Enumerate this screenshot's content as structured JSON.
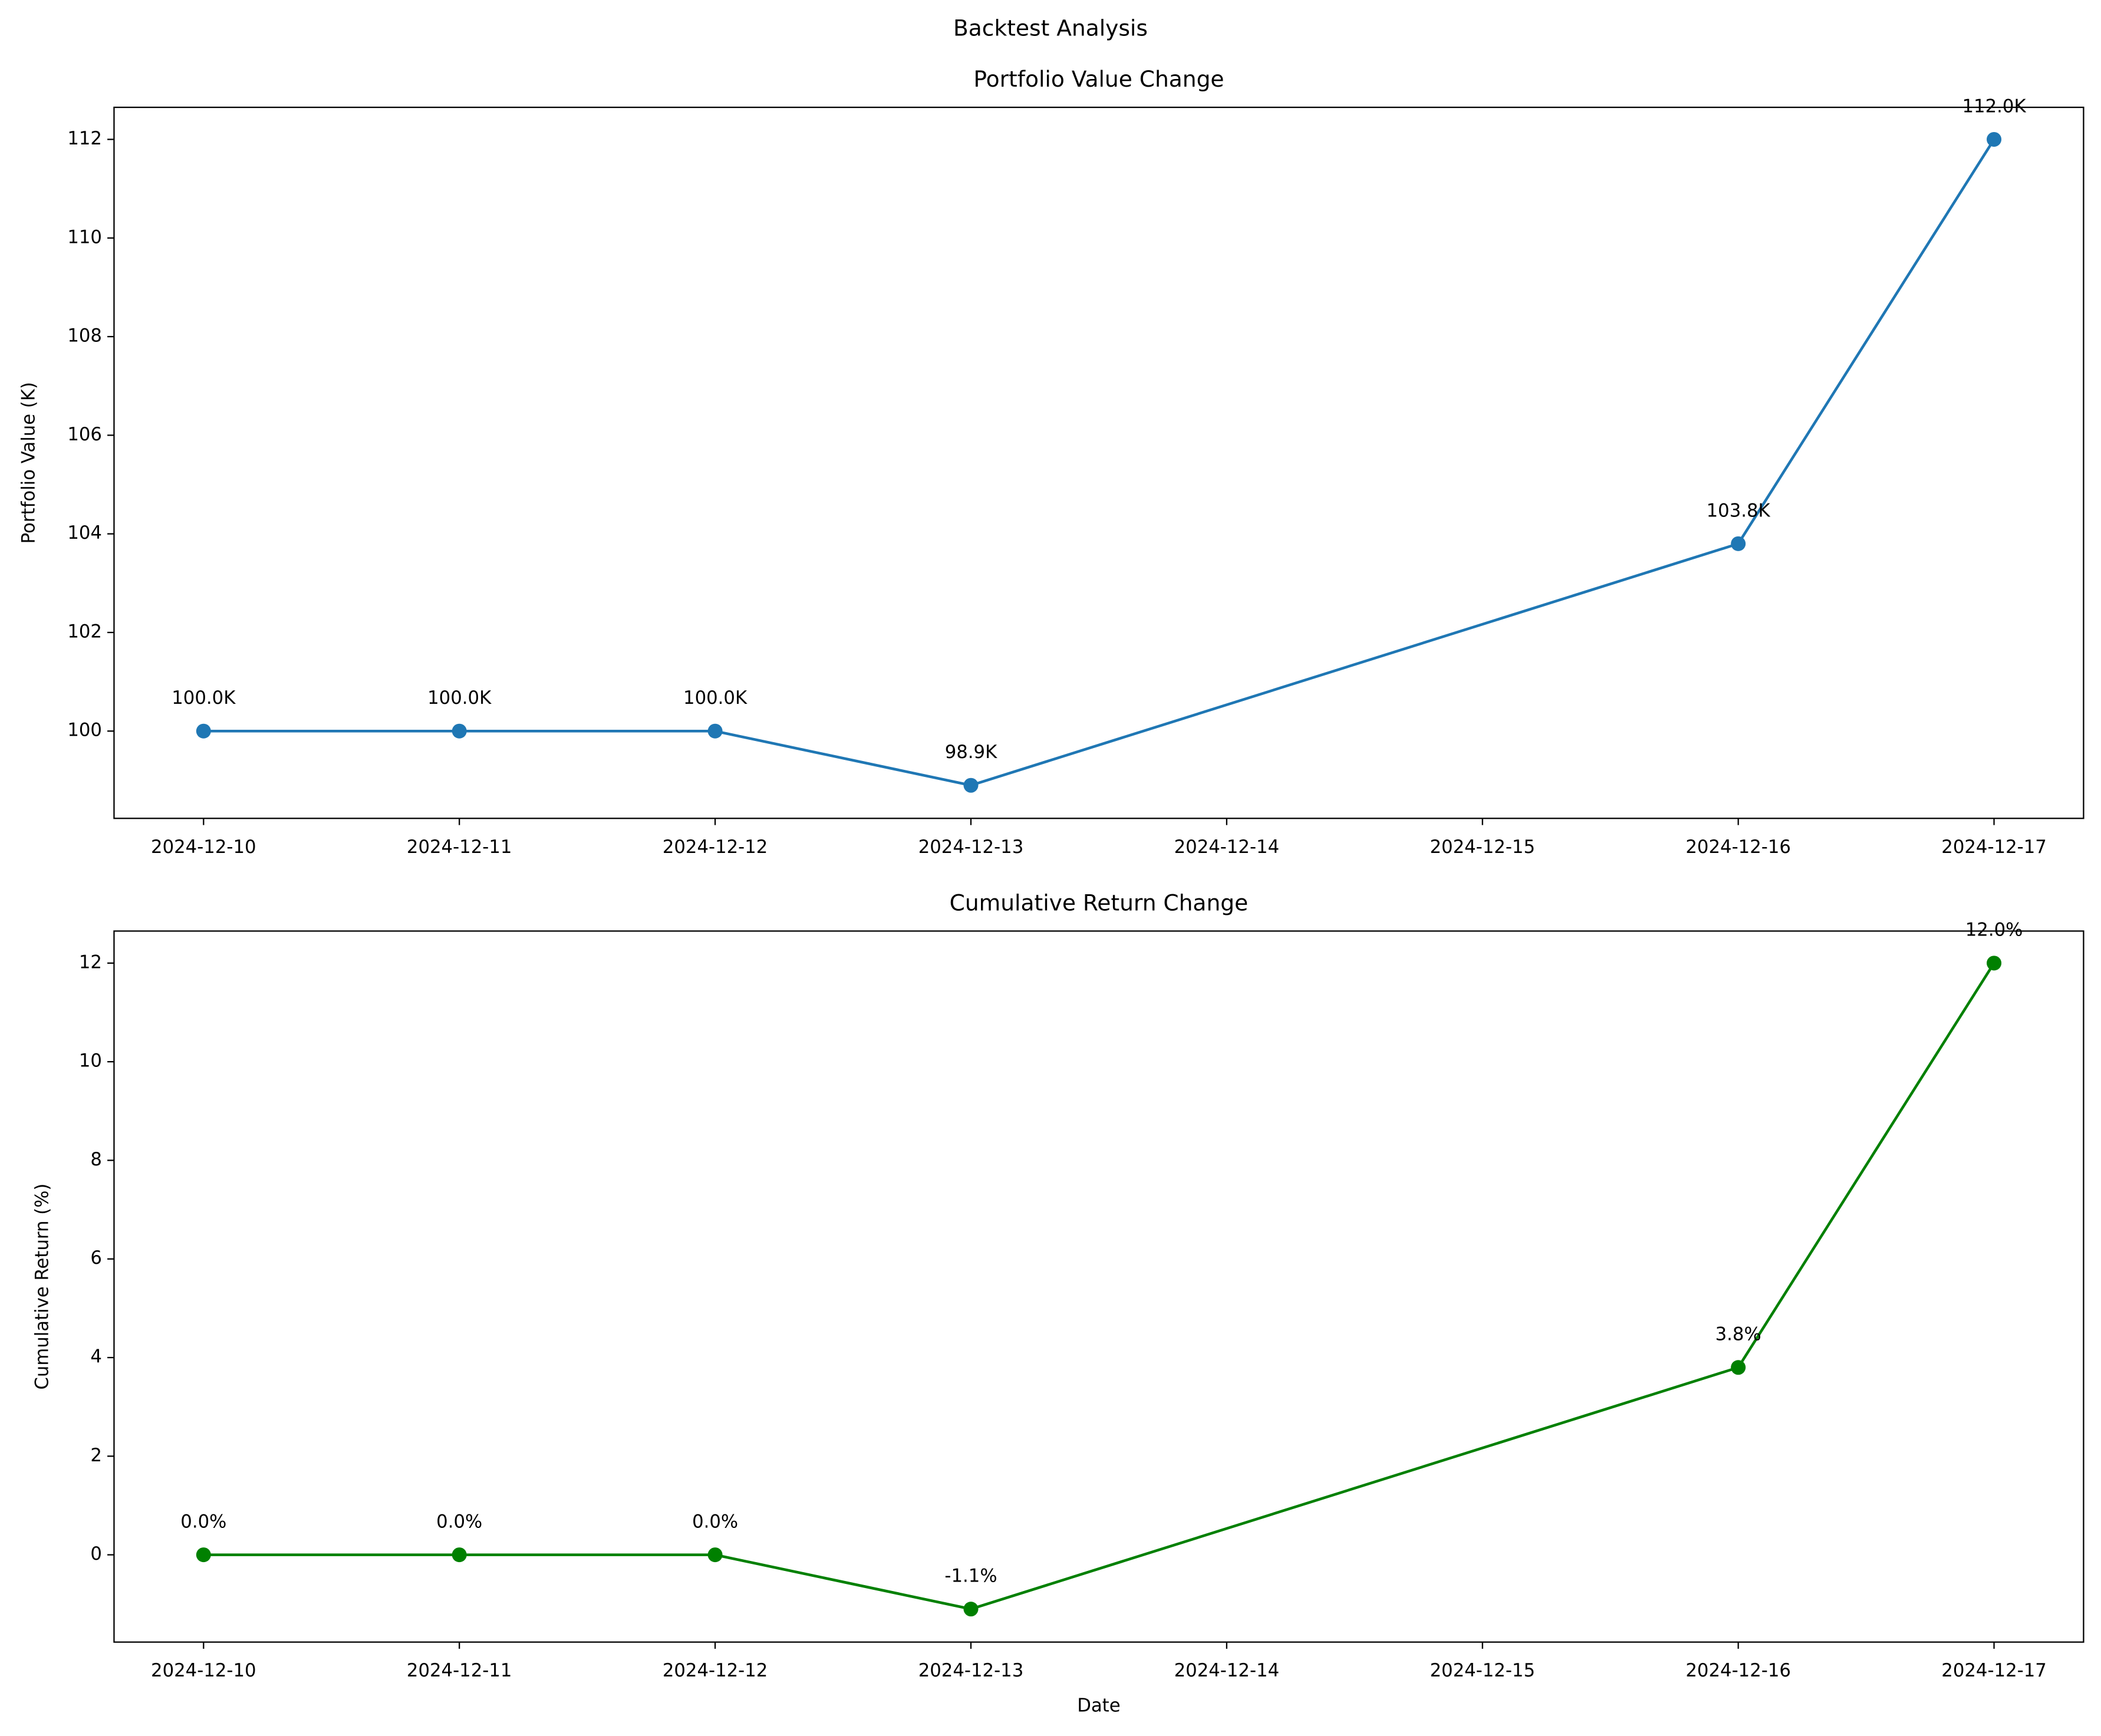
{
  "title": "Backtest Analysis",
  "chart_data": [
    {
      "type": "line",
      "title": "Portfolio Value Change",
      "ylabel": "Portfolio Value (K)",
      "x": [
        "2024-12-10",
        "2024-12-11",
        "2024-12-12",
        "2024-12-13",
        "2024-12-16",
        "2024-12-17"
      ],
      "values": [
        100.0,
        100.0,
        100.0,
        98.9,
        103.8,
        112.0
      ],
      "value_labels": [
        "100.0K",
        "100.0K",
        "100.0K",
        "98.9K",
        "103.8K",
        "112.0K"
      ],
      "color": "#1f77b4",
      "ylim": [
        98.23,
        112.65
      ],
      "yticks": [
        100,
        102,
        104,
        106,
        108,
        110,
        112
      ],
      "xticks": [
        "2024-12-10",
        "2024-12-11",
        "2024-12-12",
        "2024-12-13",
        "2024-12-14",
        "2024-12-15",
        "2024-12-16",
        "2024-12-17"
      ]
    },
    {
      "type": "line",
      "title": "Cumulative Return Change",
      "xlabel": "Date",
      "ylabel": "Cumulative Return (%)",
      "x": [
        "2024-12-10",
        "2024-12-11",
        "2024-12-12",
        "2024-12-13",
        "2024-12-16",
        "2024-12-17"
      ],
      "values": [
        0.0,
        0.0,
        0.0,
        -1.1,
        3.8,
        12.0
      ],
      "value_labels": [
        "0.0%",
        "0.0%",
        "0.0%",
        "-1.1%",
        "3.8%",
        "12.0%"
      ],
      "color": "#008000",
      "ylim": [
        -1.77,
        12.65
      ],
      "yticks": [
        0,
        2,
        4,
        6,
        8,
        10,
        12
      ],
      "xticks": [
        "2024-12-10",
        "2024-12-11",
        "2024-12-12",
        "2024-12-13",
        "2024-12-14",
        "2024-12-15",
        "2024-12-16",
        "2024-12-17"
      ]
    }
  ]
}
